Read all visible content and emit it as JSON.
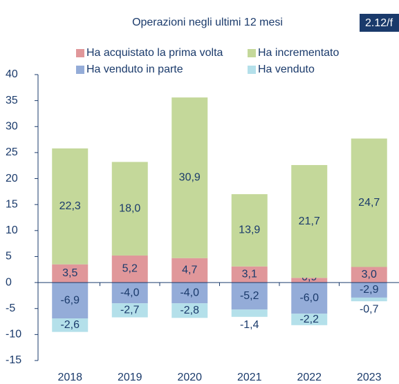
{
  "chart_data": {
    "type": "stacked_bar",
    "title": "Operazioni negli ultimi 12 mesi",
    "badge": "2.12/f",
    "categories": [
      "2018",
      "2019",
      "2020",
      "2021",
      "2022",
      "2023"
    ],
    "series": [
      {
        "name": "Ha acquistato la prima volta",
        "color": "#e0979a",
        "values": [
          3.5,
          5.2,
          4.7,
          3.1,
          0.9,
          3.0
        ],
        "value_labels": [
          "3,5",
          "5,2",
          "4,7",
          "3,1",
          "0,9",
          "3,0"
        ]
      },
      {
        "name": "Ha incrementato",
        "color": "#c4d89a",
        "values": [
          22.3,
          18.0,
          30.9,
          13.9,
          21.7,
          24.7
        ],
        "value_labels": [
          "22,3",
          "18,0",
          "30,9",
          "13,9",
          "21,7",
          "24,7"
        ]
      },
      {
        "name": "Ha venduto in parte",
        "color": "#94acd8",
        "values": [
          -6.9,
          -4.0,
          -4.0,
          -5.2,
          -6.0,
          -2.9
        ],
        "value_labels": [
          "-6,9",
          "-4,0",
          "-4,0",
          "-5,2",
          "-6,0",
          "-2,9"
        ]
      },
      {
        "name": "Ha venduto",
        "color": "#b4e0ea",
        "values": [
          -2.6,
          -2.7,
          -2.8,
          -1.4,
          -2.2,
          -0.7
        ],
        "value_labels": [
          "-2,6",
          "-2,7",
          "-2,8",
          "-1,4",
          "-2,2",
          "-0,7"
        ]
      }
    ],
    "ylim": [
      -15,
      40
    ],
    "yticks": [
      -15,
      -10,
      -5,
      0,
      5,
      10,
      15,
      20,
      25,
      30,
      35,
      40
    ]
  }
}
